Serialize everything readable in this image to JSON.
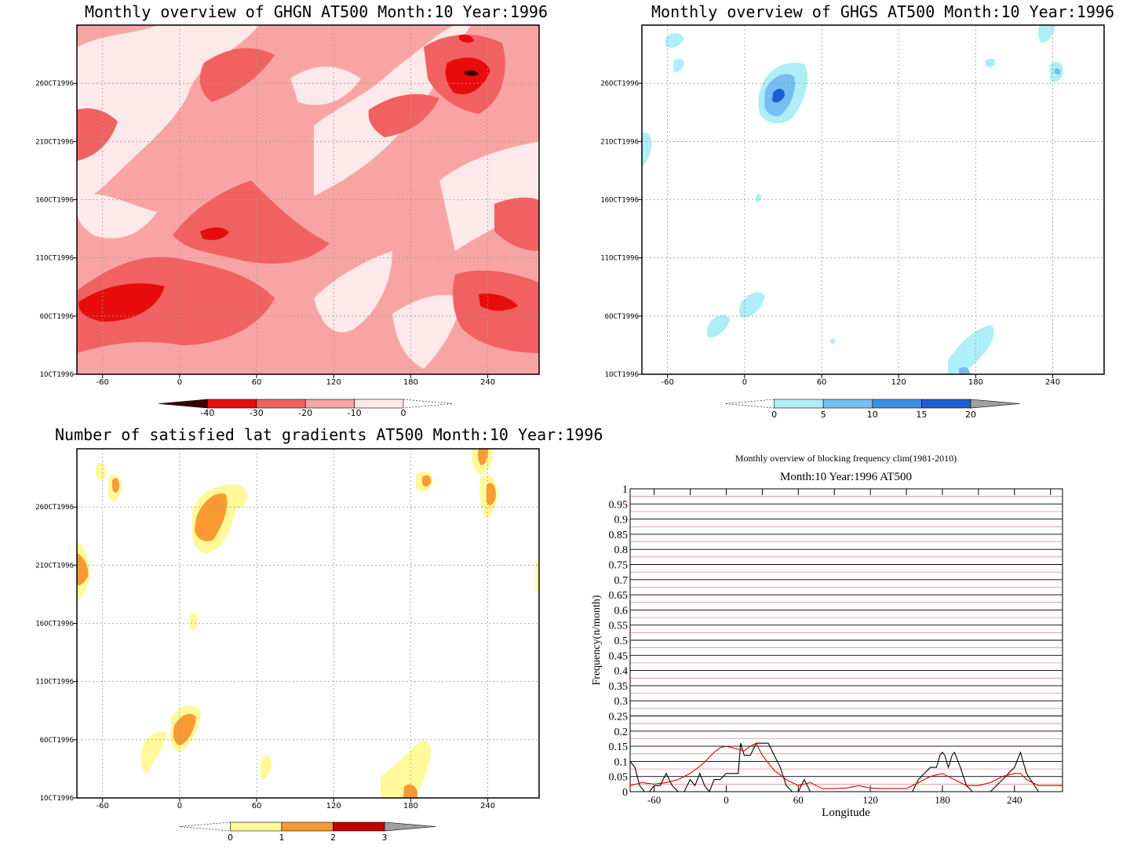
{
  "panels": {
    "ghgn": {
      "title": "Monthly overview of GHGN AT500 Month:10 Year:1996",
      "x_ticks": [
        "-60",
        "0",
        "60",
        "120",
        "180",
        "240"
      ],
      "y_ticks": [
        "1OCT1996",
        "6OCT1996",
        "11OCT1996",
        "16OCT1996",
        "21OCT1996",
        "26OCT1996"
      ],
      "colorbar": {
        "labels": [
          "-40",
          "-30",
          "-20",
          "-10",
          "0"
        ],
        "colors": [
          "#fde9e9",
          "#f9a4a4",
          "#f16161",
          "#e80c0c",
          "#3b0000"
        ]
      }
    },
    "ghgs": {
      "title": "Monthly overview of GHGS AT500 Month:10 Year:1996",
      "x_ticks": [
        "-60",
        "0",
        "60",
        "120",
        "180",
        "240"
      ],
      "y_ticks": [
        "1OCT1996",
        "6OCT1996",
        "11OCT1996",
        "16OCT1996",
        "21OCT1996",
        "26OCT1996"
      ],
      "colorbar": {
        "labels": [
          "0",
          "5",
          "10",
          "15",
          "20"
        ],
        "colors": [
          "#aeeff7",
          "#76bdf2",
          "#3a8ee6",
          "#1a5fd1",
          "#a0a0a0"
        ]
      }
    },
    "grad": {
      "title": "Number of satisfied lat gradients AT500 Month:10 Year:1996",
      "x_ticks": [
        "-60",
        "0",
        "60",
        "120",
        "180",
        "240"
      ],
      "y_ticks": [
        "1OCT1996",
        "6OCT1996",
        "11OCT1996",
        "16OCT1996",
        "21OCT1996",
        "26OCT1996"
      ],
      "colorbar": {
        "labels": [
          "0",
          "1",
          "2",
          "3"
        ],
        "colors": [
          "#fff99a",
          "#fb9a33",
          "#c10000",
          "#a0a0a0"
        ]
      }
    },
    "freq": {
      "title": "Monthly overview of blocking frequency clim(1981-2010)",
      "subtitle": "Month:10 Year:1996  AT500",
      "xlabel": "Longitude",
      "ylabel": "Frequency(n/month)"
    }
  },
  "chart_data": [
    {
      "type": "heatmap",
      "title": "Monthly overview of GHGN AT500 Month:10 Year:1996",
      "x_range": [
        -80,
        280
      ],
      "x_ticks": [
        -60,
        0,
        60,
        120,
        180,
        240
      ],
      "y_ticks": [
        "1OCT1996",
        "6OCT1996",
        "11OCT1996",
        "16OCT1996",
        "21OCT1996",
        "26OCT1996"
      ],
      "levels": [
        -40,
        -30,
        -20,
        -10,
        0
      ],
      "regions": [
        {
          "level": -10,
          "x": -60,
          "y": "24OCT1996"
        },
        {
          "level": -20,
          "x": 60,
          "y": "8OCT1996"
        },
        {
          "level": -30,
          "x": -40,
          "y": "4OCT1996"
        },
        {
          "level": -30,
          "x": 225,
          "y": "26OCT1996"
        },
        {
          "level": -40,
          "x": 228,
          "y": "27OCT1996"
        }
      ],
      "grid": true
    },
    {
      "type": "heatmap",
      "title": "Monthly overview of GHGS AT500 Month:10 Year:1996",
      "x_range": [
        -80,
        280
      ],
      "x_ticks": [
        -60,
        0,
        60,
        120,
        180,
        240
      ],
      "y_ticks": [
        "1OCT1996",
        "6OCT1996",
        "11OCT1996",
        "16OCT1996",
        "21OCT1996",
        "26OCT1996"
      ],
      "levels": [
        0,
        5,
        10,
        15,
        20
      ],
      "regions": [
        {
          "level": 5,
          "x": 25,
          "y": "25OCT1996"
        },
        {
          "level": 15,
          "x": 25,
          "y": "25OCT1996"
        },
        {
          "level": 5,
          "x": 10,
          "y": "7OCT1996"
        },
        {
          "level": 5,
          "x": 180,
          "y": "2OCT1996"
        }
      ],
      "grid": true
    },
    {
      "type": "heatmap",
      "title": "Number of satisfied lat gradients AT500 Month:10 Year:1996",
      "x_range": [
        -80,
        280
      ],
      "x_ticks": [
        -60,
        0,
        60,
        120,
        180,
        240
      ],
      "y_ticks": [
        "1OCT1996",
        "6OCT1996",
        "11OCT1996",
        "16OCT1996",
        "21OCT1996",
        "26OCT1996"
      ],
      "levels": [
        0,
        1,
        2,
        3
      ],
      "regions": [
        {
          "level": 2,
          "x": 25,
          "y": "25OCT1996"
        },
        {
          "level": 2,
          "x": -75,
          "y": "21OCT1996"
        },
        {
          "level": 2,
          "x": 8,
          "y": "6OCT1996"
        },
        {
          "level": 2,
          "x": 245,
          "y": "27OCT1996"
        },
        {
          "level": 1,
          "x": 180,
          "y": "2OCT1996"
        }
      ],
      "grid": true
    },
    {
      "type": "line",
      "title": "Monthly overview of blocking frequency clim(1981-2010)",
      "subtitle": "Month:10 Year:1996  AT500",
      "xlabel": "Longitude",
      "ylabel": "Frequency(n/month)",
      "xlim": [
        -80,
        280
      ],
      "ylim": [
        0,
        1
      ],
      "x_ticks": [
        -60,
        0,
        60,
        120,
        180,
        240
      ],
      "y_ticks": [
        "0",
        "0.05",
        "0.1",
        "0.15",
        "0.2",
        "0.25",
        "0.3",
        "0.35",
        "0.4",
        "0.45",
        "0.5",
        "0.55",
        "0.6",
        "0.65",
        "0.7",
        "0.75",
        "0.8",
        "0.85",
        "0.9",
        "0.95",
        "1"
      ],
      "series": [
        {
          "color": "#000000",
          "x": [
            -80,
            -76,
            -72,
            -68,
            -64,
            -60,
            -55,
            -50,
            -45,
            -40,
            -35,
            -30,
            -26,
            -22,
            -18,
            -14,
            -10,
            -5,
            0,
            5,
            10,
            12,
            15,
            20,
            25,
            30,
            35,
            40,
            45,
            50,
            55,
            60,
            65,
            70,
            80,
            100,
            120,
            140,
            155,
            160,
            165,
            170,
            175,
            178,
            180,
            182,
            185,
            188,
            190,
            195,
            200,
            205,
            210,
            220,
            225,
            230,
            235,
            240,
            245,
            250,
            260,
            280
          ],
          "y": [
            0.1,
            0.08,
            0.02,
            0,
            0,
            0.02,
            0.02,
            0.06,
            0.02,
            0,
            0,
            0.04,
            0.02,
            0.06,
            0.02,
            0,
            0.04,
            0.04,
            0.06,
            0.06,
            0.06,
            0.16,
            0.12,
            0.12,
            0.16,
            0.16,
            0.16,
            0.12,
            0.08,
            0.02,
            0,
            0,
            0.04,
            0,
            0,
            0,
            0,
            0,
            0,
            0.04,
            0.06,
            0.08,
            0.08,
            0.12,
            0.13,
            0.12,
            0.08,
            0.12,
            0.13,
            0.08,
            0.02,
            0,
            0,
            0,
            0.02,
            0.04,
            0.06,
            0.08,
            0.13,
            0.06,
            0,
            0
          ]
        },
        {
          "color": "#e00000",
          "x": [
            -80,
            -70,
            -60,
            -50,
            -40,
            -30,
            -20,
            -10,
            -5,
            0,
            5,
            10,
            15,
            20,
            25,
            30,
            40,
            50,
            60,
            70,
            80,
            90,
            100,
            110,
            120,
            130,
            140,
            150,
            160,
            170,
            180,
            190,
            200,
            210,
            220,
            230,
            240,
            245,
            250,
            260,
            270,
            280
          ],
          "y": [
            0.02,
            0.03,
            0.025,
            0.03,
            0.04,
            0.06,
            0.09,
            0.13,
            0.145,
            0.15,
            0.145,
            0.14,
            0.135,
            0.15,
            0.16,
            0.12,
            0.07,
            0.04,
            0.02,
            0.03,
            0.01,
            0.01,
            0.012,
            0.02,
            0.012,
            0.01,
            0.01,
            0.01,
            0.03,
            0.05,
            0.06,
            0.04,
            0.02,
            0.02,
            0.03,
            0.05,
            0.06,
            0.06,
            0.04,
            0.02,
            0.02,
            0.02
          ]
        }
      ],
      "grid": true
    }
  ]
}
